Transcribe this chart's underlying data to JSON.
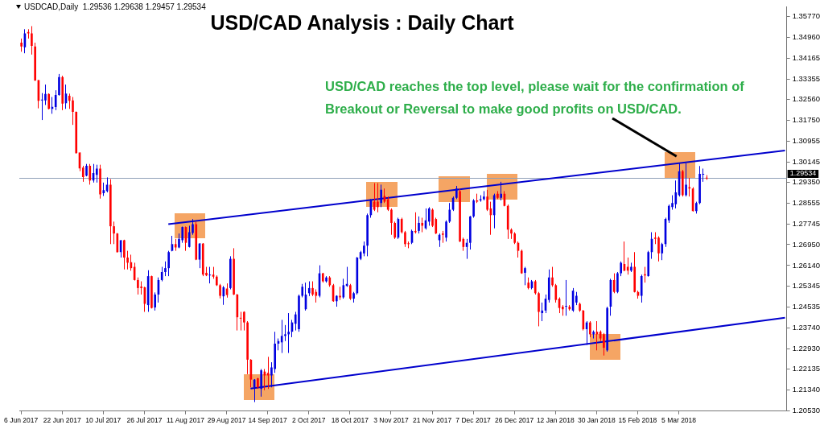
{
  "chart_data": {
    "type": "candlestick",
    "title": "USD/CAD Analysis : Daily Chart",
    "annotations": [
      "USDCAD,Daily  1.29536 1.29638 1.29457 1.29534",
      "USD/CAD reaches the top level, please wait for the confirmation of Breakout or Reversal to make good profits on USD/CAD."
    ],
    "categories": [
      "6 Jun 2017",
      null,
      null,
      null,
      null,
      null,
      null,
      null,
      null,
      null,
      null,
      null,
      "22 Jun 2017",
      null,
      null,
      null,
      null,
      null,
      null,
      null,
      null,
      null,
      null,
      null,
      "10 Jul 2017",
      null,
      null,
      null,
      null,
      null,
      null,
      null,
      null,
      null,
      null,
      null,
      "26 Jul 2017",
      null,
      null,
      null,
      null,
      null,
      null,
      null,
      null,
      null,
      null,
      null,
      "11 Aug 2017",
      null,
      null,
      null,
      null,
      null,
      null,
      null,
      null,
      null,
      null,
      null,
      "29 Aug 2017",
      null,
      null,
      null,
      null,
      null,
      null,
      null,
      null,
      null,
      null,
      null,
      "14 Sep 2017",
      null,
      null,
      null,
      null,
      null,
      null,
      null,
      null,
      null,
      null,
      null,
      "2 Oct 2017",
      null,
      null,
      null,
      null,
      null,
      null,
      null,
      null,
      null,
      null,
      null,
      "18 Oct 2017",
      null,
      null,
      null,
      null,
      null,
      null,
      null,
      null,
      null,
      null,
      null,
      "3 Nov 2017",
      null,
      null,
      null,
      null,
      null,
      null,
      null,
      null,
      null,
      null,
      null,
      "21 Nov 2017",
      null,
      null,
      null,
      null,
      null,
      null,
      null,
      null,
      null,
      null,
      null,
      "7 Dec 2017",
      null,
      null,
      null,
      null,
      null,
      null,
      null,
      null,
      null,
      null,
      null,
      "26 Dec 2017",
      null,
      null,
      null,
      null,
      null,
      null,
      null,
      null,
      null,
      null,
      null,
      "12 Jan 2018",
      null,
      null,
      null,
      null,
      null,
      null,
      null,
      null,
      null,
      null,
      null,
      "30 Jan 2018",
      null,
      null,
      null,
      null,
      null,
      null,
      null,
      null,
      null,
      null,
      null,
      "15 Feb 2018",
      null,
      null,
      null,
      null,
      null,
      null,
      null,
      null,
      null,
      null,
      null,
      "5 Mar 2018",
      null,
      null,
      null,
      null,
      null,
      null,
      null,
      null,
      null,
      null,
      null,
      null,
      null,
      null,
      null,
      null,
      null,
      null,
      null,
      null,
      null,
      null,
      null,
      null,
      null,
      null,
      null,
      null,
      null,
      null,
      null
    ],
    "ylim": [
      1.2051,
      1.3614
    ],
    "yticks": [
      {
        "value": 1.2053,
        "label": "1.20530"
      },
      {
        "value": 1.2134,
        "label": "1.21340"
      },
      {
        "value": 1.22135,
        "label": "1.22135"
      },
      {
        "value": 1.2293,
        "label": "1.22930"
      },
      {
        "value": 1.2374,
        "label": "1.23740"
      },
      {
        "value": 1.24535,
        "label": "1.24535"
      },
      {
        "value": 1.25345,
        "label": "1.25345"
      },
      {
        "value": 1.2614,
        "label": "1.26140"
      },
      {
        "value": 1.2695,
        "label": "1.26950"
      },
      {
        "value": 1.27745,
        "label": "1.27745"
      },
      {
        "value": 1.28555,
        "label": "1.28555"
      },
      {
        "value": 1.2935,
        "label": "1.29350"
      },
      {
        "value": 1.30145,
        "label": "1.30145"
      },
      {
        "value": 1.30955,
        "label": "1.30955"
      },
      {
        "value": 1.3175,
        "label": "1.31750"
      },
      {
        "value": 1.3256,
        "label": "1.32560"
      },
      {
        "value": 1.33355,
        "label": "1.33355"
      },
      {
        "value": 1.34165,
        "label": "1.34165"
      },
      {
        "value": 1.3496,
        "label": "1.34960"
      },
      {
        "value": 1.3577,
        "label": "1.35770"
      }
    ],
    "ref_lines": [
      {
        "axis": "y",
        "value": 1.29534,
        "label": "1.29534",
        "color": "#8fa0b8"
      }
    ],
    "series": [
      {
        "type": "candlestick",
        "ohlc": [
          [
            1.3476,
            1.3492,
            1.3441,
            1.3461
          ],
          [
            1.3458,
            1.3528,
            1.3435,
            1.3512
          ],
          [
            1.3517,
            1.3528,
            1.3492,
            1.3512
          ],
          [
            1.3512,
            1.354,
            1.343,
            1.3464
          ],
          [
            1.3461,
            1.3476,
            1.3328,
            1.333
          ],
          [
            1.3331,
            1.3331,
            1.3222,
            1.3251
          ],
          [
            1.3253,
            1.3281,
            1.3177,
            1.3256
          ],
          [
            1.3253,
            1.3314,
            1.3235,
            1.3278
          ],
          [
            1.3278,
            1.328,
            1.3218,
            1.322
          ],
          [
            1.322,
            1.3266,
            1.3201,
            1.3228
          ],
          [
            1.3227,
            1.3292,
            1.3215,
            1.3274
          ],
          [
            1.3274,
            1.3355,
            1.3271,
            1.3343
          ],
          [
            1.3343,
            1.3348,
            1.3215,
            1.324
          ],
          [
            1.3242,
            1.3314,
            1.322,
            1.3279
          ],
          [
            1.3271,
            1.3279,
            1.322,
            1.3251
          ],
          [
            1.3253,
            1.3266,
            1.3158,
            1.3208
          ],
          [
            1.3208,
            1.321,
            1.3047,
            1.3049
          ],
          [
            1.3051,
            1.3051,
            1.2979,
            1.299
          ],
          [
            1.2993,
            1.3,
            1.2938,
            1.2956
          ],
          [
            1.2962,
            1.3007,
            1.2959,
            1.3
          ],
          [
            1.3,
            1.3007,
            1.2927,
            1.2943
          ],
          [
            1.2943,
            1.3007,
            1.2935,
            1.2972
          ],
          [
            1.2965,
            1.3004,
            1.2935,
            1.2989
          ],
          [
            1.2989,
            1.3004,
            1.2873,
            1.2889
          ],
          [
            1.2894,
            1.2935,
            1.2883,
            1.2906
          ],
          [
            1.2902,
            1.2955,
            1.2897,
            1.2927
          ],
          [
            1.2927,
            1.2948,
            1.2697,
            1.2766
          ],
          [
            1.2766,
            1.2784,
            1.2697,
            1.2738
          ],
          [
            1.2738,
            1.274,
            1.2664,
            1.2666
          ],
          [
            1.2666,
            1.2712,
            1.2645,
            1.2712
          ],
          [
            1.2712,
            1.2714,
            1.2599,
            1.2645
          ],
          [
            1.2645,
            1.2671,
            1.2599,
            1.2625
          ],
          [
            1.2627,
            1.2656,
            1.2594,
            1.2604
          ],
          [
            1.2609,
            1.2625,
            1.2556,
            1.2558
          ],
          [
            1.2558,
            1.2568,
            1.2502,
            1.2527
          ],
          [
            1.2533,
            1.2553,
            1.2502,
            1.2527
          ],
          [
            1.253,
            1.2532,
            1.2435,
            1.2466
          ],
          [
            1.2461,
            1.2596,
            1.2435,
            1.2573
          ],
          [
            1.2573,
            1.2575,
            1.2448,
            1.245
          ],
          [
            1.2452,
            1.251,
            1.244,
            1.2502
          ],
          [
            1.2502,
            1.2568,
            1.2471,
            1.2558
          ],
          [
            1.2558,
            1.2609,
            1.2553,
            1.2589
          ],
          [
            1.2589,
            1.263,
            1.2573,
            1.2604
          ],
          [
            1.2604,
            1.2671,
            1.2573,
            1.2666
          ],
          [
            1.2671,
            1.2729,
            1.2669,
            1.2697
          ],
          [
            1.2697,
            1.2717,
            1.2671,
            1.2684
          ],
          [
            1.2684,
            1.2738,
            1.2681,
            1.2717
          ],
          [
            1.2712,
            1.2765,
            1.2702,
            1.2763
          ],
          [
            1.2763,
            1.2765,
            1.2671,
            1.2702
          ],
          [
            1.2686,
            1.2768,
            1.2684,
            1.2743
          ],
          [
            1.274,
            1.2794,
            1.2733,
            1.2774
          ],
          [
            1.2774,
            1.2784,
            1.2635,
            1.2637
          ],
          [
            1.2637,
            1.2701,
            1.2604,
            1.2699
          ],
          [
            1.2699,
            1.2701,
            1.2573,
            1.2579
          ],
          [
            1.2586,
            1.2609,
            1.2573,
            1.2576
          ],
          [
            1.2578,
            1.2609,
            1.2545,
            1.2579
          ],
          [
            1.2579,
            1.2609,
            1.2563,
            1.2571
          ],
          [
            1.2571,
            1.2576,
            1.2535,
            1.2538
          ],
          [
            1.2538,
            1.2543,
            1.2487,
            1.2497
          ],
          [
            1.2495,
            1.2535,
            1.2462,
            1.253
          ],
          [
            1.2525,
            1.2545,
            1.249,
            1.25
          ],
          [
            1.2527,
            1.265,
            1.2522,
            1.264
          ],
          [
            1.264,
            1.2681,
            1.25,
            1.2502
          ],
          [
            1.2502,
            1.2504,
            1.2363,
            1.2414
          ],
          [
            1.2412,
            1.2435,
            1.2363,
            1.241
          ],
          [
            1.2435,
            1.2437,
            1.2363,
            1.2394
          ],
          [
            1.2394,
            1.2399,
            1.2194,
            1.225
          ],
          [
            1.225,
            1.2252,
            1.2143,
            1.2173
          ],
          [
            1.2143,
            1.2175,
            1.2086,
            1.2173
          ],
          [
            1.2178,
            1.218,
            1.2137,
            1.2143
          ],
          [
            1.2137,
            1.2214,
            1.2107,
            1.2209
          ],
          [
            1.2204,
            1.2214,
            1.2132,
            1.2189
          ],
          [
            1.2199,
            1.2261,
            1.2137,
            1.2189
          ],
          [
            1.2189,
            1.224,
            1.2143,
            1.222
          ],
          [
            1.2214,
            1.2358,
            1.2199,
            1.2312
          ],
          [
            1.2312,
            1.2332,
            1.2286,
            1.2322
          ],
          [
            1.2317,
            1.2404,
            1.2276,
            1.2342
          ],
          [
            1.2342,
            1.2384,
            1.2322,
            1.2348
          ],
          [
            1.2348,
            1.243,
            1.2276,
            1.2358
          ],
          [
            1.2358,
            1.2404,
            1.2337,
            1.2394
          ],
          [
            1.2389,
            1.2435,
            1.2363,
            1.2425
          ],
          [
            1.2368,
            1.2502,
            1.2358,
            1.2497
          ],
          [
            1.2497,
            1.2543,
            1.2491,
            1.2532
          ],
          [
            1.2445,
            1.2548,
            1.244,
            1.2502
          ],
          [
            1.2507,
            1.2553,
            1.2496,
            1.2527
          ],
          [
            1.2527,
            1.2553,
            1.2496,
            1.2502
          ],
          [
            1.2512,
            1.2522,
            1.2471,
            1.2497
          ],
          [
            1.2497,
            1.2615,
            1.2491,
            1.2584
          ],
          [
            1.2584,
            1.2586,
            1.2548,
            1.2553
          ],
          [
            1.2553,
            1.2573,
            1.2548,
            1.2568
          ],
          [
            1.2568,
            1.2573,
            1.2532,
            1.2538
          ],
          [
            1.2538,
            1.2543,
            1.2474,
            1.2476
          ],
          [
            1.2476,
            1.2499,
            1.2455,
            1.2497
          ],
          [
            1.2497,
            1.2532,
            1.2481,
            1.2491
          ],
          [
            1.2491,
            1.2563,
            1.2486,
            1.2538
          ],
          [
            1.2535,
            1.2609,
            1.2532,
            1.2543
          ],
          [
            1.2538,
            1.2543,
            1.2481,
            1.2486
          ],
          [
            1.2486,
            1.2512,
            1.2471,
            1.2507
          ],
          [
            1.2507,
            1.2647,
            1.2502,
            1.2645
          ],
          [
            1.264,
            1.2671,
            1.2635,
            1.2666
          ],
          [
            1.2661,
            1.2707,
            1.265,
            1.2691
          ],
          [
            1.2691,
            1.2815,
            1.265,
            1.2809
          ],
          [
            1.2809,
            1.2871,
            1.2799,
            1.2866
          ],
          [
            1.2861,
            1.2933,
            1.2825,
            1.283
          ],
          [
            1.2861,
            1.2933,
            1.282,
            1.284
          ],
          [
            1.2856,
            1.2927,
            1.284,
            1.2907
          ],
          [
            1.2883,
            1.2912,
            1.2856,
            1.2861
          ],
          [
            1.2871,
            1.2881,
            1.2825,
            1.283
          ],
          [
            1.283,
            1.2835,
            1.2733,
            1.2779
          ],
          [
            1.2779,
            1.2784,
            1.2717,
            1.2722
          ],
          [
            1.2722,
            1.2799,
            1.2717,
            1.2794
          ],
          [
            1.2794,
            1.2799,
            1.2738,
            1.2743
          ],
          [
            1.2743,
            1.2748,
            1.2686,
            1.2697
          ],
          [
            1.27,
            1.2707,
            1.2681,
            1.2697
          ],
          [
            1.2702,
            1.2753,
            1.2697,
            1.2748
          ],
          [
            1.2748,
            1.282,
            1.2738,
            1.2743
          ],
          [
            1.2748,
            1.2804,
            1.2738,
            1.2779
          ],
          [
            1.2779,
            1.2799,
            1.2743,
            1.2768
          ],
          [
            1.2758,
            1.2835,
            1.2753,
            1.2789
          ],
          [
            1.2784,
            1.284,
            1.2768,
            1.2835
          ],
          [
            1.283,
            1.2835,
            1.2763,
            1.2768
          ],
          [
            1.2794,
            1.2799,
            1.2736,
            1.2738
          ],
          [
            1.2712,
            1.2738,
            1.2686,
            1.2733
          ],
          [
            1.2738,
            1.2748,
            1.2702,
            1.2733
          ],
          [
            1.2722,
            1.2789,
            1.2707,
            1.2784
          ],
          [
            1.2784,
            1.2856,
            1.2779,
            1.283
          ],
          [
            1.283,
            1.2881,
            1.2825,
            1.2876
          ],
          [
            1.2876,
            1.2922,
            1.2871,
            1.2912
          ],
          [
            1.2902,
            1.2912,
            1.2705,
            1.2707
          ],
          [
            1.2717,
            1.2722,
            1.2671,
            1.2686
          ],
          [
            1.2686,
            1.2717,
            1.264,
            1.2702
          ],
          [
            1.2702,
            1.2806,
            1.2676,
            1.2804
          ],
          [
            1.2804,
            1.2871,
            1.2799,
            1.2866
          ],
          [
            1.2866,
            1.2892,
            1.2856,
            1.2861
          ],
          [
            1.2866,
            1.2886,
            1.2861,
            1.2871
          ],
          [
            1.2871,
            1.2902,
            1.2866,
            1.2881
          ],
          [
            1.2881,
            1.2907,
            1.2825,
            1.283
          ],
          [
            1.2835,
            1.2861,
            1.2733,
            1.2809
          ],
          [
            1.2809,
            1.2892,
            1.2758,
            1.2886
          ],
          [
            1.2892,
            1.2902,
            1.2871,
            1.2876
          ],
          [
            1.2876,
            1.2938,
            1.2866,
            1.2892
          ],
          [
            1.2892,
            1.2902,
            1.2843,
            1.2845
          ],
          [
            1.2845,
            1.285,
            1.2717,
            1.2753
          ],
          [
            1.2753,
            1.2758,
            1.2717,
            1.2738
          ],
          [
            1.2738,
            1.2743,
            1.2697,
            1.2702
          ],
          [
            1.2702,
            1.2707,
            1.2645,
            1.2671
          ],
          [
            1.2671,
            1.2676,
            1.2582,
            1.2584
          ],
          [
            1.2586,
            1.2609,
            1.2538,
            1.2604
          ],
          [
            1.2548,
            1.2568,
            1.2522,
            1.2527
          ],
          [
            1.2527,
            1.2558,
            1.2522,
            1.2553
          ],
          [
            1.2553,
            1.2558,
            1.2502,
            1.2507
          ],
          [
            1.2507,
            1.2512,
            1.2379,
            1.2435
          ],
          [
            1.243,
            1.2471,
            1.2399,
            1.244
          ],
          [
            1.244,
            1.2502,
            1.243,
            1.2486
          ],
          [
            1.2481,
            1.2599,
            1.2471,
            1.2568
          ],
          [
            1.2568,
            1.2609,
            1.2532,
            1.2538
          ],
          [
            1.2538,
            1.2543,
            1.2471,
            1.2481
          ],
          [
            1.2486,
            1.2491,
            1.243,
            1.245
          ],
          [
            1.2455,
            1.2461,
            1.242,
            1.2445
          ],
          [
            1.2457,
            1.2558,
            1.242,
            1.2458
          ],
          [
            1.2455,
            1.2461,
            1.244,
            1.2445
          ],
          [
            1.244,
            1.2527,
            1.2435,
            1.2517
          ],
          [
            1.2471,
            1.2512,
            1.2461,
            1.2497
          ],
          [
            1.2466,
            1.2471,
            1.2435,
            1.244
          ],
          [
            1.244,
            1.2442,
            1.2363,
            1.2368
          ],
          [
            1.2368,
            1.2399,
            1.2307,
            1.2394
          ],
          [
            1.2394,
            1.2399,
            1.2337,
            1.2348
          ],
          [
            1.2348,
            1.2363,
            1.2332,
            1.2358
          ],
          [
            1.2358,
            1.2399,
            1.2286,
            1.2348
          ],
          [
            1.2358,
            1.2363,
            1.2322,
            1.2332
          ],
          [
            1.2348,
            1.2353,
            1.2266,
            1.2296
          ],
          [
            1.2286,
            1.2455,
            1.2281,
            1.245
          ],
          [
            1.2455,
            1.2563,
            1.242,
            1.2558
          ],
          [
            1.2558,
            1.2584,
            1.2507,
            1.2512
          ],
          [
            1.2512,
            1.2589,
            1.2507,
            1.2584
          ],
          [
            1.2584,
            1.263,
            1.2573,
            1.2625
          ],
          [
            1.262,
            1.2707,
            1.2592,
            1.2594
          ],
          [
            1.2609,
            1.2645,
            1.2579,
            1.2594
          ],
          [
            1.2594,
            1.2625,
            1.2589,
            1.2609
          ],
          [
            1.2609,
            1.2666,
            1.251,
            1.2512
          ],
          [
            1.2512,
            1.2517,
            1.2486,
            1.2497
          ],
          [
            1.2497,
            1.2579,
            1.2471,
            1.2573
          ],
          [
            1.258,
            1.2609,
            1.2548,
            1.2576
          ],
          [
            1.2573,
            1.2671,
            1.2571,
            1.2666
          ],
          [
            1.2666,
            1.2743,
            1.264,
            1.2717
          ],
          [
            1.2722,
            1.2743,
            1.2697,
            1.2717
          ],
          [
            1.2722,
            1.2727,
            1.263,
            1.2661
          ],
          [
            1.2661,
            1.2702,
            1.2635,
            1.2697
          ],
          [
            1.2697,
            1.2799,
            1.2686,
            1.2794
          ],
          [
            1.2789,
            1.285,
            1.2779,
            1.2845
          ],
          [
            1.284,
            1.2886,
            1.283,
            1.2856
          ],
          [
            1.2851,
            1.2943,
            1.2835,
            1.2897
          ],
          [
            1.2886,
            1.301,
            1.2881,
            1.2979
          ],
          [
            1.2979,
            1.2984,
            1.2881,
            1.2886
          ],
          [
            1.2886,
            1.301,
            1.2881,
            1.2927
          ],
          [
            1.2917,
            1.2953,
            1.2881,
            1.2912
          ],
          [
            1.2912,
            1.2917,
            1.2823,
            1.2825
          ],
          [
            1.2825,
            1.2861,
            1.2815,
            1.2856
          ],
          [
            1.2856,
            1.2999,
            1.2851,
            1.2969
          ],
          [
            1.2966,
            1.2989,
            1.2938,
            1.2969
          ],
          [
            1.29536,
            1.29638,
            1.29457,
            1.29534
          ],
          null,
          null,
          null,
          null,
          null,
          null,
          null,
          null,
          null,
          null,
          null,
          null,
          null,
          null,
          null,
          null,
          null,
          null,
          null,
          null,
          null,
          null,
          null
        ],
        "colors": [
          "#ff0000",
          "#0000e0",
          "#ff0000",
          "#ff0000",
          "#ff0000",
          "#ff0000",
          "#0000e0",
          "#0000e0",
          "#ff0000",
          "#0000e0",
          "#0000e0",
          "#0000e0",
          "#ff0000",
          "#0000e0",
          "#ff0000",
          "#ff0000",
          "#ff0000",
          "#ff0000",
          "#ff0000",
          "#0000e0",
          "#ff0000",
          "#0000e0",
          "#0000e0",
          "#ff0000",
          "#0000e0",
          "#0000e0",
          "#ff0000",
          "#ff0000",
          "#ff0000",
          "#0000e0",
          "#ff0000",
          "#ff0000",
          "#ff0000",
          "#ff0000",
          "#ff0000",
          "#ff0000",
          "#ff0000",
          "#0000e0",
          "#ff0000",
          "#0000e0",
          "#0000e0",
          "#0000e0",
          "#0000e0",
          "#0000e0",
          "#0000e0",
          "#ff0000",
          "#0000e0",
          "#0000e0",
          "#ff0000",
          "#0000e0",
          "#0000e0",
          "#ff0000",
          "#0000e0",
          "#ff0000",
          "#ff0000",
          "#0000e0",
          "#ff0000",
          "#ff0000",
          "#ff0000",
          "#0000e0",
          "#ff0000",
          "#0000e0",
          "#ff0000",
          "#ff0000",
          "#ff0000",
          "#ff0000",
          "#ff0000",
          "#ff0000",
          "#0000e0",
          "#ff0000",
          "#0000e0",
          "#ff0000",
          "#ff0000",
          "#0000e0",
          "#0000e0",
          "#0000e0",
          "#0000e0",
          "#0000e0",
          "#0000e0",
          "#0000e0",
          "#0000e0",
          "#0000e0",
          "#0000e0",
          "#0000e0",
          "#0000e0",
          "#ff0000",
          "#ff0000",
          "#0000e0",
          "#ff0000",
          "#0000e0",
          "#ff0000",
          "#ff0000",
          "#0000e0",
          "#ff0000",
          "#0000e0",
          "#0000e0",
          "#ff0000",
          "#0000e0",
          "#0000e0",
          "#0000e0",
          "#0000e0",
          "#0000e0",
          "#0000e0",
          "#ff0000",
          "#ff0000",
          "#0000e0",
          "#ff0000",
          "#ff0000",
          "#ff0000",
          "#ff0000",
          "#0000e0",
          "#ff0000",
          "#ff0000",
          "#ff0000",
          "#0000e0",
          "#ff0000",
          "#0000e0",
          "#ff0000",
          "#0000e0",
          "#0000e0",
          "#ff0000",
          "#ff0000",
          "#0000e0",
          "#ff0000",
          "#0000e0",
          "#0000e0",
          "#0000e0",
          "#0000e0",
          "#ff0000",
          "#ff0000",
          "#0000e0",
          "#0000e0",
          "#0000e0",
          "#ff0000",
          "#0000e0",
          "#0000e0",
          "#ff0000",
          "#ff0000",
          "#0000e0",
          "#ff0000",
          "#0000e0",
          "#ff0000",
          "#ff0000",
          "#ff0000",
          "#ff0000",
          "#ff0000",
          "#ff0000",
          "#0000e0",
          "#ff0000",
          "#0000e0",
          "#ff0000",
          "#ff0000",
          "#0000e0",
          "#0000e0",
          "#0000e0",
          "#ff0000",
          "#ff0000",
          "#ff0000",
          "#ff0000",
          "#0000e0",
          "#ff0000",
          "#0000e0",
          "#0000e0",
          "#ff0000",
          "#ff0000",
          "#0000e0",
          "#ff0000",
          "#0000e0",
          "#ff0000",
          "#ff0000",
          "#ff0000",
          "#0000e0",
          "#0000e0",
          "#ff0000",
          "#0000e0",
          "#0000e0",
          "#ff0000",
          "#ff0000",
          "#0000e0",
          "#ff0000",
          "#ff0000",
          "#0000e0",
          "#ff0000",
          "#0000e0",
          "#0000e0",
          "#ff0000",
          "#ff0000",
          "#0000e0",
          "#0000e0",
          "#0000e0",
          "#0000e0",
          "#0000e0",
          "#0000e0",
          "#ff0000",
          "#0000e0",
          "#ff0000",
          "#ff0000",
          "#0000e0",
          "#0000e0",
          "#0000e0",
          "#ff0000",
          null,
          null,
          null,
          null,
          null,
          null,
          null,
          null,
          null,
          null,
          null,
          null,
          null,
          null,
          null,
          null,
          null,
          null,
          null,
          null,
          null,
          null,
          null
        ]
      },
      {
        "type": "line",
        "color": "#0000cd",
        "values": [
          null,
          null,
          null,
          null,
          null,
          null,
          null,
          null,
          null,
          null,
          null,
          null,
          null,
          null,
          null,
          null,
          null,
          null,
          null,
          null,
          null,
          null,
          null,
          null,
          null,
          null,
          null,
          null,
          null,
          null,
          null,
          null,
          null,
          null,
          null,
          null,
          null,
          null,
          null,
          null,
          null,
          null,
          null,
          1.2774,
          null,
          null,
          null,
          null,
          null,
          null,
          null,
          null,
          null,
          null,
          null,
          null,
          null,
          null,
          null,
          null,
          null,
          null,
          null,
          null,
          null,
          null,
          null,
          null,
          null,
          null,
          null,
          null,
          null,
          null,
          null,
          null,
          null,
          null,
          null,
          null,
          null,
          null,
          null,
          null,
          null,
          null,
          null,
          null,
          null,
          null,
          null,
          null,
          null,
          null,
          null,
          null,
          null,
          null,
          null,
          null,
          null,
          null,
          null,
          null,
          null,
          null,
          null,
          null,
          null,
          null,
          null,
          null,
          null,
          null,
          null,
          null,
          null,
          null,
          null,
          null,
          null,
          null,
          null,
          null,
          null,
          null,
          null,
          null,
          null,
          null,
          null,
          null,
          null,
          null,
          null,
          null,
          null,
          null,
          null,
          null,
          null,
          null,
          null,
          null,
          null,
          null,
          null,
          null,
          null,
          null,
          null,
          null,
          null,
          null,
          null,
          null,
          null,
          null,
          null,
          null,
          null,
          null,
          null,
          null,
          null,
          null,
          null,
          null,
          null,
          null,
          null,
          null,
          null,
          null,
          null,
          null,
          null,
          null,
          null,
          null,
          null,
          null,
          null,
          null,
          null,
          null,
          null,
          null,
          null,
          null,
          null,
          null,
          null,
          null,
          null,
          null,
          null,
          null,
          null,
          null,
          null,
          null,
          null,
          null,
          null,
          null,
          null,
          null,
          null,
          null,
          null,
          null,
          null,
          null,
          null,
          null,
          null,
          null,
          null,
          null,
          null,
          null,
          null,
          1.3059
        ]
      },
      {
        "type": "line",
        "color": "#0000cd",
        "values": [
          null,
          null,
          null,
          null,
          null,
          null,
          null,
          null,
          null,
          null,
          null,
          null,
          null,
          null,
          null,
          null,
          null,
          null,
          null,
          null,
          null,
          null,
          null,
          null,
          null,
          null,
          null,
          null,
          null,
          null,
          null,
          null,
          null,
          null,
          null,
          null,
          null,
          null,
          null,
          null,
          null,
          null,
          null,
          null,
          null,
          null,
          null,
          null,
          null,
          null,
          null,
          null,
          null,
          null,
          null,
          null,
          null,
          null,
          null,
          null,
          null,
          null,
          null,
          null,
          null,
          null,
          null,
          1.2138,
          null,
          null,
          null,
          null,
          null,
          null,
          null,
          null,
          null,
          null,
          null,
          null,
          null,
          null,
          null,
          null,
          null,
          null,
          null,
          null,
          null,
          null,
          null,
          null,
          null,
          null,
          null,
          null,
          null,
          null,
          null,
          null,
          null,
          null,
          null,
          null,
          null,
          null,
          null,
          null,
          null,
          null,
          null,
          null,
          null,
          null,
          null,
          null,
          null,
          null,
          null,
          null,
          null,
          null,
          null,
          null,
          null,
          null,
          null,
          null,
          null,
          null,
          null,
          null,
          null,
          null,
          null,
          null,
          null,
          null,
          null,
          null,
          null,
          null,
          null,
          null,
          null,
          null,
          null,
          null,
          null,
          null,
          null,
          null,
          null,
          null,
          null,
          null,
          null,
          null,
          null,
          null,
          null,
          null,
          null,
          null,
          null,
          null,
          null,
          null,
          null,
          null,
          null,
          null,
          null,
          null,
          null,
          null,
          null,
          null,
          null,
          null,
          null,
          null,
          null,
          null,
          null,
          null,
          null,
          null,
          null,
          null,
          null,
          null,
          null,
          null,
          null,
          null,
          null,
          null,
          null,
          null,
          null,
          null,
          null,
          null,
          null,
          null,
          null,
          null,
          null,
          null,
          null,
          null,
          null,
          null,
          null,
          null,
          null,
          null,
          null,
          null,
          null,
          null,
          null,
          1.2412
        ]
      }
    ]
  }
}
